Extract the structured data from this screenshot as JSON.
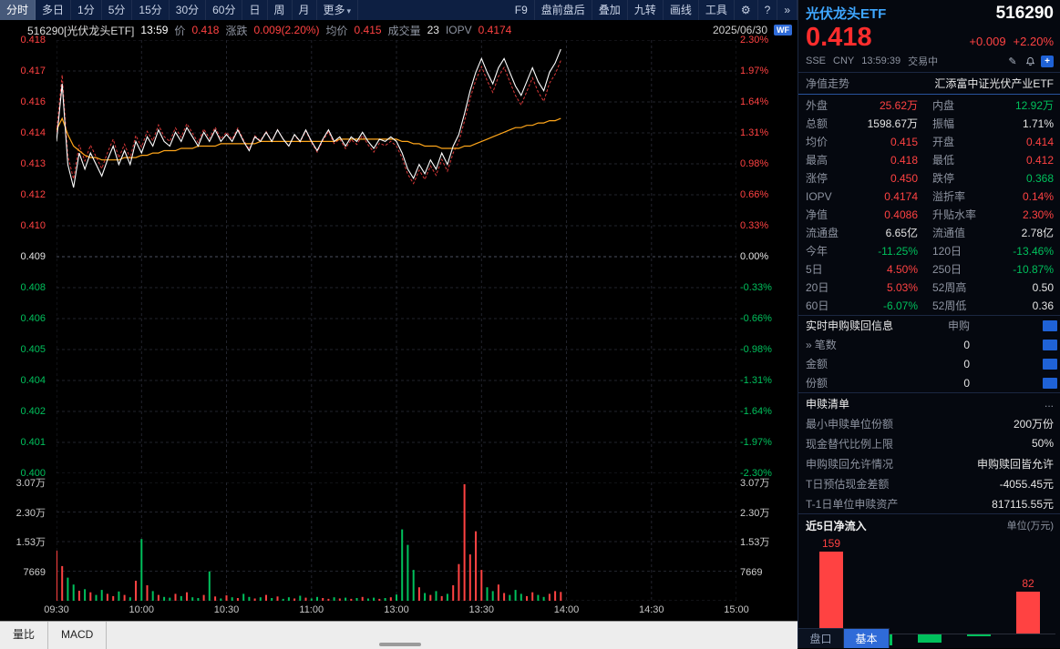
{
  "toolbar": {
    "left_items": [
      {
        "label": "分时",
        "selected": true
      },
      {
        "label": "多日",
        "selected": false
      },
      {
        "label": "1分",
        "selected": false
      },
      {
        "label": "5分",
        "selected": false
      },
      {
        "label": "15分",
        "selected": false
      },
      {
        "label": "30分",
        "selected": false
      },
      {
        "label": "60分",
        "selected": false
      },
      {
        "label": "日",
        "selected": false
      },
      {
        "label": "周",
        "selected": false
      },
      {
        "label": "月",
        "selected": false
      },
      {
        "label": "更多",
        "selected": false,
        "arrow": true
      }
    ],
    "right_items": [
      {
        "label": "F9"
      },
      {
        "label": "盘前盘后"
      },
      {
        "label": "叠加"
      },
      {
        "label": "九转"
      },
      {
        "label": "画线"
      },
      {
        "label": "工具"
      },
      {
        "label": "⚙",
        "icon": "gear-icon"
      },
      {
        "label": "?",
        "icon": "help-icon"
      },
      {
        "label": "»",
        "icon": "expand-icon"
      }
    ]
  },
  "chart_header": {
    "symbol": "516290[光伏龙头ETF]",
    "time": "13:59",
    "price_label": "价",
    "price": "0.418",
    "change_label": "涨跌",
    "change": "0.009(2.20%)",
    "avg_label": "均价",
    "avg": "0.415",
    "vol_label": "成交量",
    "vol": "23",
    "iopv_label": "IOPV",
    "iopv": "0.4174",
    "date": "2025/06/30",
    "wf_badge": "WF"
  },
  "axes": {
    "price_labels": [
      {
        "t": "0.418",
        "c": "up"
      },
      {
        "t": "0.417",
        "c": "up"
      },
      {
        "t": "0.416",
        "c": "up"
      },
      {
        "t": "0.414",
        "c": "up"
      },
      {
        "t": "0.413",
        "c": "up"
      },
      {
        "t": "0.412",
        "c": "up"
      },
      {
        "t": "0.410",
        "c": "up"
      },
      {
        "t": "0.409",
        "c": "flat"
      },
      {
        "t": "0.408",
        "c": "down"
      },
      {
        "t": "0.406",
        "c": "down"
      },
      {
        "t": "0.405",
        "c": "down"
      },
      {
        "t": "0.404",
        "c": "down"
      },
      {
        "t": "0.402",
        "c": "down"
      },
      {
        "t": "0.401",
        "c": "down"
      },
      {
        "t": "0.400",
        "c": "down"
      }
    ],
    "pct_labels": [
      {
        "t": "2.30%",
        "c": "up"
      },
      {
        "t": "1.97%",
        "c": "up"
      },
      {
        "t": "1.64%",
        "c": "up"
      },
      {
        "t": "1.31%",
        "c": "up"
      },
      {
        "t": "0.98%",
        "c": "up"
      },
      {
        "t": "0.66%",
        "c": "up"
      },
      {
        "t": "0.33%",
        "c": "up"
      },
      {
        "t": "0.00%",
        "c": "flat"
      },
      {
        "t": "-0.33%",
        "c": "down"
      },
      {
        "t": "-0.66%",
        "c": "down"
      },
      {
        "t": "-0.98%",
        "c": "down"
      },
      {
        "t": "-1.31%",
        "c": "down"
      },
      {
        "t": "-1.64%",
        "c": "down"
      },
      {
        "t": "-1.97%",
        "c": "down"
      },
      {
        "t": "-2.30%",
        "c": "down"
      }
    ],
    "vol_labels": [
      "3.07万",
      "2.30万",
      "1.53万",
      "7669"
    ],
    "time_labels": [
      "09:30",
      "10:00",
      "10:30",
      "11:00",
      "13:00",
      "13:30",
      "14:00",
      "14:30",
      "15:00"
    ]
  },
  "chart_data": {
    "type": "line",
    "title": "516290 光伏龙头ETF 分时走势 2025/06/30",
    "prev_close": 0.409,
    "y_range": [
      0.3996,
      0.4184
    ],
    "vol_max": 30676,
    "x_total_minutes": 240,
    "minutes_per_point": 2,
    "price": [
      0.414,
      0.4165,
      0.413,
      0.412,
      0.4135,
      0.4128,
      0.4135,
      0.413,
      0.4125,
      0.4132,
      0.4138,
      0.413,
      0.4136,
      0.413,
      0.414,
      0.4135,
      0.4142,
      0.4138,
      0.4145,
      0.414,
      0.4138,
      0.4144,
      0.414,
      0.4146,
      0.4142,
      0.4138,
      0.4144,
      0.414,
      0.4145,
      0.414,
      0.4143,
      0.414,
      0.4145,
      0.414,
      0.4136,
      0.4142,
      0.414,
      0.4144,
      0.414,
      0.4145,
      0.4141,
      0.4138,
      0.4143,
      0.414,
      0.4145,
      0.414,
      0.4136,
      0.4141,
      0.4145,
      0.414,
      0.4142,
      0.4138,
      0.4142,
      0.414,
      0.4144,
      0.414,
      0.4137,
      0.4141,
      0.414,
      0.4142,
      0.414,
      0.4135,
      0.4128,
      0.4124,
      0.413,
      0.4126,
      0.4132,
      0.4128,
      0.4135,
      0.413,
      0.4138,
      0.4143,
      0.4152,
      0.4162,
      0.417,
      0.4176,
      0.417,
      0.4165,
      0.4172,
      0.4176,
      0.417,
      0.4164,
      0.416,
      0.4166,
      0.4172,
      0.4166,
      0.4162,
      0.417,
      0.4174,
      0.418
    ],
    "avg": [
      0.4145,
      0.415,
      0.4143,
      0.4138,
      0.4136,
      0.4134,
      0.4133,
      0.4133,
      0.4132,
      0.4132,
      0.4132,
      0.4132,
      0.4133,
      0.4133,
      0.4133,
      0.4134,
      0.4134,
      0.4135,
      0.4135,
      0.4136,
      0.4136,
      0.4136,
      0.4137,
      0.4137,
      0.4137,
      0.4138,
      0.4138,
      0.4138,
      0.4138,
      0.4139,
      0.4139,
      0.4139,
      0.4139,
      0.4139,
      0.4139,
      0.4139,
      0.414,
      0.414,
      0.414,
      0.414,
      0.414,
      0.414,
      0.414,
      0.414,
      0.414,
      0.414,
      0.414,
      0.414,
      0.414,
      0.414,
      0.4141,
      0.4141,
      0.4141,
      0.4141,
      0.4141,
      0.4141,
      0.4141,
      0.4141,
      0.4141,
      0.4141,
      0.4141,
      0.414,
      0.414,
      0.4139,
      0.4139,
      0.4138,
      0.4138,
      0.4138,
      0.4137,
      0.4137,
      0.4137,
      0.4137,
      0.4138,
      0.4138,
      0.4139,
      0.414,
      0.4141,
      0.4142,
      0.4143,
      0.4144,
      0.4145,
      0.4146,
      0.4146,
      0.4147,
      0.4147,
      0.4148,
      0.4148,
      0.4149,
      0.4149,
      0.415
    ],
    "volume": [
      13000,
      9000,
      6000,
      4200,
      2600,
      3000,
      2200,
      1500,
      2800,
      1800,
      1200,
      2400,
      1500,
      900,
      5200,
      16000,
      4000,
      2500,
      1500,
      1000,
      800,
      1800,
      1200,
      2200,
      900,
      700,
      1500,
      7600,
      1100,
      600,
      1400,
      900,
      700,
      1800,
      1000,
      600,
      900,
      1500,
      700,
      1100,
      500,
      900,
      600,
      1300,
      800,
      600,
      1000,
      700,
      500,
      900,
      600,
      800,
      500,
      700,
      1000,
      600,
      800,
      500,
      700,
      900,
      1600,
      18500,
      14500,
      8000,
      3500,
      2000,
      1500,
      2500,
      1200,
      1800,
      4000,
      9500,
      30200,
      12000,
      18000,
      8000,
      3500,
      2500,
      4200,
      2000,
      1500,
      2800,
      1800,
      1200,
      2200,
      1500,
      1000,
      1800,
      2500,
      2300
    ]
  },
  "bottom_left_tabs": [
    "量比",
    "MACD"
  ],
  "panel": {
    "name": "光伏龙头ETF",
    "code": "516290",
    "price": "0.418",
    "change": "+0.009",
    "change_pct": "+2.20%",
    "exchange": "SSE",
    "currency": "CNY",
    "time": "13:59:39",
    "status": "交易中",
    "nav_trend_label": "净值走势",
    "fund_name": "汇添富中证光伏产业ETF",
    "stats": [
      {
        "l1": "外盘",
        "v1": "25.62万",
        "c1": "up",
        "l2": "内盘",
        "v2": "12.92万",
        "c2": "down"
      },
      {
        "l1": "总额",
        "v1": "1598.67万",
        "c1": "flat",
        "l2": "振幅",
        "v2": "1.71%",
        "c2": "flat"
      },
      {
        "l1": "均价",
        "v1": "0.415",
        "c1": "up",
        "l2": "开盘",
        "v2": "0.414",
        "c2": "up"
      },
      {
        "l1": "最高",
        "v1": "0.418",
        "c1": "up",
        "l2": "最低",
        "v2": "0.412",
        "c2": "up"
      },
      {
        "l1": "涨停",
        "v1": "0.450",
        "c1": "up",
        "l2": "跌停",
        "v2": "0.368",
        "c2": "down"
      },
      {
        "l1": "IOPV",
        "v1": "0.4174",
        "c1": "up",
        "l2": "溢折率",
        "v2": "0.14%",
        "c2": "up"
      },
      {
        "l1": "净值",
        "v1": "0.4086",
        "c1": "up",
        "l2": "升贴水率",
        "v2": "2.30%",
        "c2": "up"
      },
      {
        "l1": "流通盘",
        "v1": "6.65亿",
        "c1": "flat",
        "l2": "流通值",
        "v2": "2.78亿",
        "c2": "flat"
      },
      {
        "l1": "今年",
        "v1": "-11.25%",
        "c1": "down",
        "l2": "120日",
        "v2": "-13.46%",
        "c2": "down"
      },
      {
        "l1": "5日",
        "v1": "4.50%",
        "c1": "up",
        "l2": "250日",
        "v2": "-10.87%",
        "c2": "down"
      },
      {
        "l1": "20日",
        "v1": "5.03%",
        "c1": "up",
        "l2": "52周高",
        "v2": "0.50",
        "c2": "flat"
      },
      {
        "l1": "60日",
        "v1": "-6.07%",
        "c1": "down",
        "l2": "52周低",
        "v2": "0.36",
        "c2": "flat"
      }
    ],
    "subscribe_section": {
      "title": "实时申购赎回信息",
      "col1": "申购",
      "col2": "赎回",
      "rows": [
        {
          "label": "笔数",
          "value": "0",
          "chevron": true
        },
        {
          "label": "金额",
          "value": "0",
          "chevron": false
        },
        {
          "label": "份额",
          "value": "0",
          "chevron": false
        }
      ]
    },
    "list_section": {
      "title": "申赎清单",
      "more": "...",
      "rows": [
        {
          "label": "最小申赎单位份额",
          "value": "200万份"
        },
        {
          "label": "现金替代比例上限",
          "value": "50%"
        },
        {
          "label": "申购赎回允许情况",
          "value": "申购赎回皆允许"
        },
        {
          "label": "T日预估现金差额",
          "value": "-4055.45元"
        },
        {
          "label": "T-1日单位申赎资产",
          "value": "817115.55元"
        }
      ]
    },
    "flow_section": {
      "title": "近5日净流入",
      "unit": "单位(万元)",
      "values": [
        159,
        -20,
        -16,
        -3,
        82
      ],
      "labels": [
        "159",
        "",
        "",
        "",
        "82"
      ]
    },
    "bottom_tabs": [
      {
        "label": "盘口",
        "selected": false
      },
      {
        "label": "基本",
        "selected": true
      }
    ]
  },
  "colors": {
    "up": "#ff4242",
    "down": "#00c05c",
    "flat": "#e4e4e4",
    "avg_line": "#ffa61a",
    "price_line": "#ffffff",
    "accent_blue": "#2f6bd8",
    "name_blue": "#3fa7ff"
  }
}
